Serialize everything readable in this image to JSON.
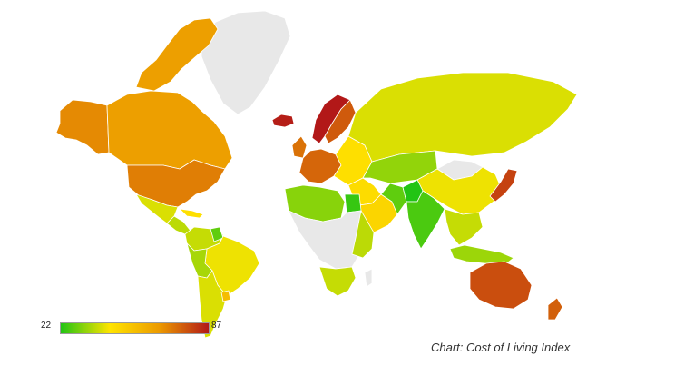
{
  "legend": {
    "min_label": "22",
    "max_label": "87",
    "min": 22,
    "max": 87,
    "colors": [
      "#22c414",
      "#ffe400",
      "#ec9a00",
      "#b21818"
    ]
  },
  "caption": "Chart: Cost of Living Index",
  "no_data_color": "#e8e8e8",
  "regions": [
    {
      "name": "alaska",
      "index": 68
    },
    {
      "name": "canada",
      "index": 64
    },
    {
      "name": "canadian-arctic",
      "index": 64
    },
    {
      "name": "united-states",
      "index": 70
    },
    {
      "name": "greenland",
      "index": null
    },
    {
      "name": "iceland",
      "index": 86
    },
    {
      "name": "mexico",
      "index": 40
    },
    {
      "name": "central-america",
      "index": 37
    },
    {
      "name": "caribbean",
      "index": 45
    },
    {
      "name": "colombia-venezuela",
      "index": 38
    },
    {
      "name": "guianas",
      "index": 28
    },
    {
      "name": "brazil",
      "index": 42
    },
    {
      "name": "peru-bolivia",
      "index": 35
    },
    {
      "name": "chile-argentina",
      "index": 40
    },
    {
      "name": "uruguay",
      "index": 55
    },
    {
      "name": "norway",
      "index": 87
    },
    {
      "name": "sweden-finland",
      "index": 76
    },
    {
      "name": "uk-ireland",
      "index": 72
    },
    {
      "name": "western-europe",
      "index": 74
    },
    {
      "name": "eastern-europe",
      "index": 45
    },
    {
      "name": "russia",
      "index": 40
    },
    {
      "name": "kazakhstan",
      "index": 33
    },
    {
      "name": "mongolia",
      "index": null
    },
    {
      "name": "china",
      "index": 42
    },
    {
      "name": "japan-korea",
      "index": 80
    },
    {
      "name": "middle-east",
      "index": 46
    },
    {
      "name": "saudi-arabia",
      "index": 48
    },
    {
      "name": "iran",
      "index": 28
    },
    {
      "name": "pakistan",
      "index": 22
    },
    {
      "name": "india",
      "index": 26
    },
    {
      "name": "southeast-asia",
      "index": 38
    },
    {
      "name": "indonesia",
      "index": 34
    },
    {
      "name": "australia",
      "index": 78
    },
    {
      "name": "new-zealand",
      "index": 75
    },
    {
      "name": "north-africa",
      "index": 32
    },
    {
      "name": "egypt",
      "index": 24
    },
    {
      "name": "central-africa",
      "index": null
    },
    {
      "name": "east-africa",
      "index": 37
    },
    {
      "name": "southern-africa",
      "index": 38
    },
    {
      "name": "madagascar",
      "index": null
    }
  ]
}
